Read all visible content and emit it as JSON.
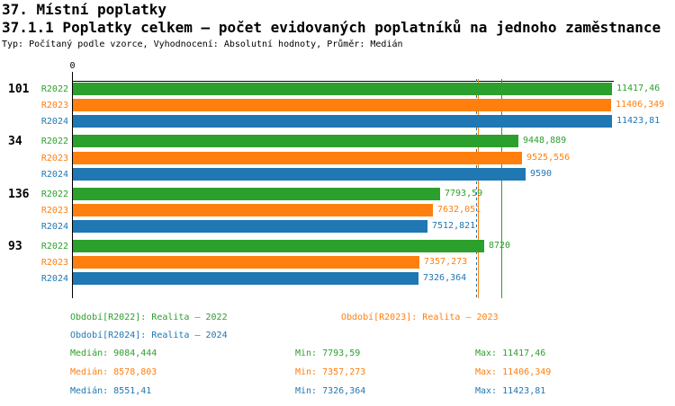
{
  "header": {
    "title1": "37. Místní poplatky",
    "title2": "37.1.1 Poplatky celkem – počet evidovaných poplatníků na jednoho zaměstnance",
    "meta": "Typ: Počítaný podle vzorce, Vyhodnocení: Absolutní hodnoty, Průměr: Medián"
  },
  "colors": {
    "r2022": "#2ca02c",
    "r2023": "#ff7f0e",
    "r2024": "#1f77b4",
    "axis": "#000000",
    "background": "#ffffff"
  },
  "chart_data": {
    "type": "bar",
    "orientation": "horizontal",
    "grid": false,
    "x_axis": {
      "tick_labels": [
        "0"
      ],
      "min": 0,
      "max_shown_value": 11423.81
    },
    "categories": [
      "101",
      "34",
      "136",
      "93"
    ],
    "series": [
      {
        "name": "R2022",
        "color": "#2ca02c",
        "values": [
          11417.46,
          9448.889,
          7793.59,
          8720
        ],
        "value_labels": [
          "11417,46",
          "9448,889",
          "7793,59",
          "8720"
        ]
      },
      {
        "name": "R2023",
        "color": "#ff7f0e",
        "values": [
          11406.349,
          9525.556,
          7632.051,
          7357.273
        ],
        "value_labels": [
          "11406,349",
          "9525,556",
          "7632,051",
          "7357,273"
        ]
      },
      {
        "name": "R2024",
        "color": "#1f77b4",
        "values": [
          11423.81,
          9590,
          7512.821,
          7326.364
        ],
        "value_labels": [
          "11423,81",
          "9590",
          "7512,821",
          "7326,364"
        ]
      }
    ],
    "median_lines": [
      {
        "series": "R2022",
        "value": 9084.444,
        "color": "#2ca02c",
        "style": "solid"
      },
      {
        "series": "R2023",
        "value": 8578.803,
        "color": "#ff7f0e",
        "style": "solid"
      },
      {
        "series": "R2024",
        "value": 8551.41,
        "color": "#1f77b4",
        "style": "dashed"
      }
    ],
    "legend_position": "bottom"
  },
  "legend": {
    "items": [
      {
        "label": "Období[R2022]: Realita – 2022",
        "color": "#2ca02c"
      },
      {
        "label": "Období[R2023]: Realita – 2023",
        "color": "#ff7f0e"
      },
      {
        "label": "Období[R2024]: Realita – 2024",
        "color": "#1f77b4"
      }
    ]
  },
  "stats": {
    "rows": [
      {
        "color": "#2ca02c",
        "median": "Medián: 9084,444",
        "min": "Min: 7793,59",
        "max": "Max: 11417,46"
      },
      {
        "color": "#ff7f0e",
        "median": "Medián: 8578,803",
        "min": "Min: 7357,273",
        "max": "Max: 11406,349"
      },
      {
        "color": "#1f77b4",
        "median": "Medián: 8551,41",
        "min": "Min: 7326,364",
        "max": "Max: 11423,81"
      }
    ]
  }
}
